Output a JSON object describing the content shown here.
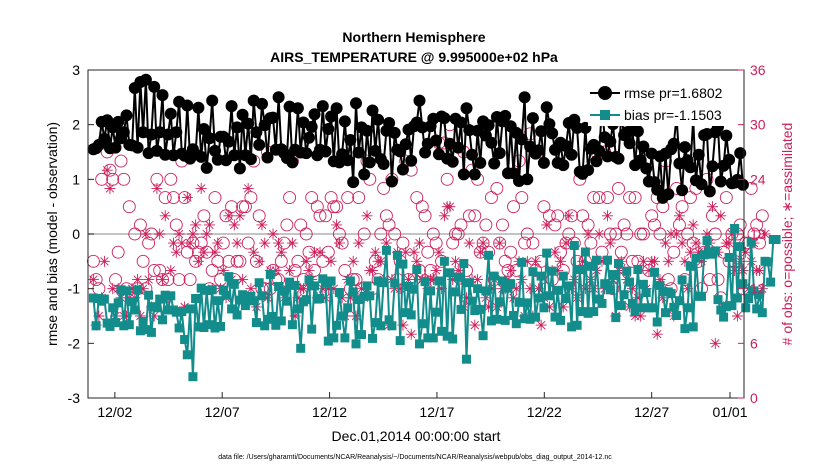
{
  "chart_data": {
    "type": "line",
    "title": "Northern Hemisphere",
    "subtitle": "AIRS_TEMPERATURE @ 9.995000e+02 hPa",
    "xlabel": "Dec.01,2014 00:00:00 start",
    "ylabel": "rmse and bias (model - observation)",
    "y2label": "# of obs: o=possible; ∗=assimilated",
    "footnote": "data file: /Users/gharamti/Documents/NCAR/Reanalysis/~/Documents/NCAR/Reanalysis/webpub/obs_diag_output_2014-12.nc",
    "xlim": [
      0.75,
      31.3
    ],
    "ylim": [
      -3,
      3
    ],
    "y2lim": [
      0,
      36
    ],
    "xticks": [
      {
        "x": 2,
        "label": "12/02"
      },
      {
        "x": 7,
        "label": "12/07"
      },
      {
        "x": 12,
        "label": "12/12"
      },
      {
        "x": 17,
        "label": "12/17"
      },
      {
        "x": 22,
        "label": "12/22"
      },
      {
        "x": 27,
        "label": "12/27"
      },
      {
        "x": 32,
        "label": "01/01"
      }
    ],
    "yticks": [
      "3",
      "2",
      "1",
      "0",
      "-1",
      "-2",
      "-3"
    ],
    "y2ticks": [
      "36",
      "30",
      "24",
      "18",
      "12",
      "6",
      "0"
    ],
    "zero_line": 0,
    "legend": {
      "position": "top-right",
      "entries": [
        "rmse pr=1.6802",
        "bias pr=-1.1503"
      ]
    },
    "colors": {
      "rmse": "#000000",
      "bias": "#138c8c",
      "obs": "#cc1f5b",
      "zero_line": "#b0b0b0"
    },
    "series": [
      {
        "name": "rmse pr=1.6802",
        "values": [
          1.55,
          1.57,
          1.63,
          2.05,
          1.74,
          2.08,
          1.57,
          1.95,
          1.58,
          2.05,
          1.75,
          1.86,
          2.17,
          1.63,
          1.62,
          2.67,
          1.58,
          2.78,
          1.86,
          2.82,
          1.48,
          1.82,
          2.69,
          1.52,
          1.86,
          2.54,
          1.45,
          1.82,
          2.2,
          1.44,
          1.86,
          2.42,
          1.47,
          1.43,
          2.35,
          1.38,
          1.55,
          1.46,
          2.31,
          1.41,
          1.92,
          1.21,
          1.75,
          2.44,
          1.52,
          1.36,
          1.78,
          1.78,
          1.35,
          1.69,
          2.34,
          1.44,
          1.95,
          1.2,
          2.18,
          1.44,
          2.02,
          1.37,
          2.44,
          1.86,
          1.63,
          2.38,
          1.99,
          1.4,
          2.12,
          2.13,
          1.54,
          2.5,
          1.55,
          1.48,
          1.39,
          2.33,
          1.31,
          1.54,
          2.3,
          1.49,
          2.04,
          1.48,
          1.76,
          1.96,
          2.19,
          1.44,
          1.54,
          2.34,
          1.51,
          1.92,
          2.15,
          1.33,
          2.3,
          1.31,
          1.46,
          2.06,
          1.35,
          1.72,
          0.95,
          2.39,
          1.49,
          1.95,
          1.09,
          1.89,
          1.31,
          2.26,
          1.52,
          2.09,
          1.37,
          1.28,
          1.89,
          2.03,
          0.96,
          1.85,
          1.54,
          1.51,
          1.18,
          1.64,
          1.91,
          1.34,
          1.97,
          2.04,
          2.44,
          1.95,
          1.49,
          1.65,
          1.97,
          2.11,
          1.71,
          1.46,
          2.15,
          2.12,
          1.38,
          1.65,
          1.32,
          2.11,
          1.58,
          2.04,
          1.09,
          2.3,
          1.9,
          1.45,
          1.09,
          1.89,
          1.3,
          2.06,
          1.8,
          1.99,
          1.67,
          1.29,
          2.14,
          1.48,
          2.06,
          2.16,
          1.11,
          1.97,
          1.11,
          1.85,
          0.97,
          1.73,
          2.5,
          1.0,
          1.6,
          2.12,
          1.47,
          1.53,
          1.88,
          1.3,
          2.32,
          2.01,
          1.84,
          1.54,
          1.3,
          1.67,
          1.26,
          1.61,
          2.03,
          1.45,
          2.09,
          1.94,
          1.14,
          1.1,
          1.94,
          1.17,
          1.56,
          1.63,
          1.33,
          1.52,
          2.31,
          1.77,
          1.42,
          1.69,
          2.01,
          1.41,
          1.38,
          2.17,
          1.81,
          1.86,
          1.66,
          1.93,
          1.26,
          1.88,
          1.35,
          1.6,
          1.2,
          0.96,
          1.47,
          0.95,
          0.81,
          1.42,
          0.66,
          1.47,
          0.73,
          1.55,
          1.65,
          2.15,
          1.29,
          0.8,
          1.59,
          1.35,
          1.22,
          2.11,
          0.98,
          1.45,
          0.91,
          1.81,
          1.83,
          0.78,
          1.24,
          1.86,
          1.96,
          0.96,
          1.25,
          1.8,
          1.36,
          0.93,
          0.94,
          0.99,
          1.48,
          0.9
        ]
      },
      {
        "name": "bias pr=-1.1503",
        "values": [
          -1.17,
          -1.68,
          -1.18,
          -1.23,
          -1.19,
          -1.63,
          -1.69,
          -1.35,
          -1.62,
          -1.26,
          -1.02,
          -1.68,
          -1.04,
          -1.66,
          -1.24,
          -1.39,
          -1.02,
          -1.77,
          -1.6,
          -1.75,
          -1.12,
          -1.8,
          -1.33,
          -1.35,
          -1.19,
          -1.57,
          -1.12,
          -1.39,
          -1.13,
          -1.39,
          -1.43,
          -1.72,
          -1.42,
          -1.93,
          -2.21,
          -1.37,
          -2.61,
          -1.18,
          -1.7,
          -0.99,
          -1.71,
          -1.03,
          -1.66,
          -1.02,
          -1.72,
          -1.22,
          -1.69,
          -1.03,
          -1.12,
          -0.78,
          -1.37,
          -0.92,
          -1.48,
          -1.21,
          -1.11,
          -1.31,
          -1.22,
          -1.14,
          -1.22,
          -1.62,
          -0.89,
          -1.13,
          -1.68,
          -1.56,
          -0.74,
          -1.51,
          -1.67,
          -0.96,
          -1.59,
          -1.04,
          -1.23,
          -0.88,
          -1.66,
          -0.94,
          -1.37,
          -2.09,
          -1.24,
          -1.2,
          -0.84,
          -1.74,
          -0.95,
          -1.19,
          -1.18,
          -0.82,
          -0.89,
          -1.96,
          -0.86,
          -1.9,
          -1.67,
          -1.07,
          -1.5,
          -1.9,
          -1.35,
          -0.86,
          -1.06,
          -2.01,
          -1.2,
          -1.84,
          -1.14,
          -0.95,
          -1.13,
          -1.91,
          -1.62,
          -0.86,
          -1.68,
          -0.89,
          -0.3,
          -1.57,
          -1.68,
          -0.9,
          -0.39,
          -1.95,
          -0.55,
          -1.44,
          -0.96,
          -1.48,
          -1.01,
          -0.65,
          -2.01,
          -1.64,
          -0.87,
          -1.9,
          -1.04,
          -1.9,
          -1.43,
          -0.86,
          -1.78,
          -0.5,
          -1.87,
          -0.71,
          -1.92,
          -1.06,
          -0.79,
          -1.38,
          -0.54,
          -2.29,
          -0.89,
          -1.23,
          -1.4,
          -1.0,
          -1.38,
          -1.86,
          -1.04,
          -0.39,
          -1.59,
          -0.77,
          -1.56,
          -1.24,
          -0.86,
          -1.58,
          -0.99,
          -0.91,
          -1.49,
          -1.64,
          -1.25,
          -0.52,
          -1.55,
          -1.26,
          -1.56,
          -0.69,
          -1.52,
          -1.17,
          -0.77,
          -1.35,
          -0.35,
          -1.13,
          -0.68,
          -1.52,
          -1.03,
          -1.58,
          -0.77,
          -1.18,
          -0.95,
          -1.7,
          -0.21,
          -1.67,
          -0.65,
          -1.42,
          -0.33,
          -1.45,
          -0.59,
          -1.42,
          -0.48,
          -1.19,
          -1.27,
          -0.91,
          -0.48,
          -1.02,
          -0.74,
          -1.53,
          -0.54,
          -1.31,
          -1.11,
          -0.68,
          -0.88,
          -1.27,
          -1.41,
          -0.65,
          -1.35,
          -0.92,
          -1.07,
          -1.35,
          -1.35,
          -0.7,
          -1.61,
          -0.94,
          -1.05,
          -1.44,
          -1.06,
          -1.09,
          -1.34,
          -1.49,
          -1.22,
          -0.84,
          -1.73,
          -1.35,
          -0.59,
          -1.7,
          -0.44,
          -1.14,
          -1.14,
          -0.38,
          -0.12,
          -0.33,
          -0.37,
          -0.31,
          -1.2,
          -1.39,
          -1.52,
          -1.33,
          -0.43,
          -1.31,
          0.1,
          -1.17,
          -0.23,
          -0.91,
          -1.35,
          -1.18,
          -0.15,
          -1.04,
          -1.37,
          -1.11,
          -1.44,
          -0.5,
          -0.51,
          -0.88,
          -0.1,
          -0.1
        ]
      },
      {
        "name": "possible",
        "marker": "circle",
        "values": [
          15,
          13,
          12,
          24,
          28,
          27,
          25,
          24,
          13,
          16,
          26,
          24,
          12,
          21,
          11,
          18,
          12,
          19,
          15,
          12,
          17,
          18,
          14,
          24,
          14,
          13,
          22,
          13,
          24,
          22,
          19,
          13,
          26,
          22,
          16,
          13,
          17,
          15,
          16,
          17,
          20,
          16,
          12,
          14,
          22,
          15,
          13,
          17,
          20,
          15,
          21,
          13,
          15,
          15,
          21,
          21,
          17,
          22,
          26,
          15,
          20,
          12,
          12,
          27,
          12,
          14,
          13,
          13,
          15,
          17,
          19,
          22,
          26,
          14,
          15,
          19,
          13,
          18,
          16,
          22,
          14,
          21,
          20,
          15,
          20,
          16,
          22,
          21,
          21,
          18,
          17,
          14,
          22,
          12,
          13,
          13,
          22,
          12,
          18,
          26,
          24,
          12,
          15,
          13,
          18,
          23,
          20,
          19,
          24,
          18,
          13,
          15,
          17,
          26,
          13,
          25,
          13,
          22,
          14,
          21,
          20,
          16,
          14,
          18,
          17,
          28,
          15,
          28,
          24,
          30,
          17,
          18,
          18,
          19,
          27,
          14,
          20,
          25,
          20,
          24,
          16,
          17,
          19,
          16,
          22,
          13,
          23,
          17,
          19,
          15,
          14,
          16,
          21,
          14,
          26,
          22,
          17,
          18,
          29,
          17,
          14,
          27,
          15,
          21,
          12,
          20,
          13,
          19,
          20,
          16,
          14,
          17,
          18,
          20,
          17,
          15,
          24,
          20,
          15,
          19,
          17,
          22,
          27,
          22,
          16,
          27,
          22,
          18,
          12,
          18,
          23,
          16,
          19,
          18,
          22,
          15,
          22,
          15,
          18,
          18,
          26,
          14,
          20,
          19,
          22,
          18,
          21,
          26,
          13,
          12,
          16,
          23,
          19,
          21,
          13,
          18,
          22,
          17,
          23,
          15,
          12,
          16,
          24,
          13,
          20,
          18,
          13,
          11,
          16,
          22,
          15,
          18,
          15,
          18,
          19,
          12,
          17,
          17,
          23,
          18,
          19,
          17,
          20
        ]
      },
      {
        "name": "assimilated",
        "marker": "asterisk",
        "values": [
          13,
          8,
          9,
          11,
          15,
          25,
          23,
          12,
          9,
          12,
          11,
          9,
          9,
          11,
          12,
          11,
          13,
          9,
          12,
          18,
          13,
          10,
          9,
          23,
          18,
          13,
          20,
          11,
          14,
          17,
          16,
          18,
          17,
          10,
          22,
          17,
          18,
          19,
          15,
          23,
          16,
          18,
          19,
          12,
          16,
          17,
          12,
          14,
          11,
          20,
          13,
          19,
          17,
          20,
          13,
          11,
          23,
          12,
          16,
          10,
          15,
          19,
          17,
          11,
          14,
          18,
          14,
          17,
          16,
          11,
          12,
          14,
          17,
          9,
          11,
          12,
          12,
          15,
          14,
          13,
          16,
          11,
          16,
          12,
          11,
          12,
          15,
          12,
          19,
          17,
          11,
          9,
          13,
          11,
          15,
          9,
          17,
          12,
          11,
          20,
          14,
          14,
          16,
          15,
          15,
          13,
          17,
          8,
          13,
          12,
          16,
          12,
          8,
          16,
          13,
          7,
          16,
          15,
          17,
          13,
          13,
          12,
          13,
          13,
          14,
          16,
          12,
          20,
          21,
          21,
          13,
          15,
          14,
          13,
          10,
          11,
          17,
          13,
          8,
          13,
          16,
          17,
          11,
          10,
          12,
          13,
          10,
          17,
          12,
          12,
          13,
          14,
          11,
          12,
          15,
          13,
          9,
          15,
          12,
          9,
          15,
          12,
          8,
          11,
          19,
          10,
          14,
          16,
          14,
          15,
          10,
          17,
          20,
          12,
          13,
          11,
          14,
          15,
          12,
          18,
          13,
          12,
          14,
          18,
          15,
          12,
          20,
          17,
          13,
          9,
          14,
          15,
          14,
          13,
          10,
          12,
          9,
          11,
          9,
          15,
          12,
          14,
          15,
          15,
          7,
          13,
          11,
          17,
          15,
          18,
          9,
          18,
          20,
          17,
          15,
          12,
          16,
          19,
          17,
          16,
          15,
          16,
          18,
          17,
          21,
          6,
          16,
          20,
          10,
          17,
          17,
          18,
          14,
          9,
          15,
          14,
          16,
          12,
          15,
          17,
          14,
          14,
          12,
          18
        ]
      }
    ]
  }
}
